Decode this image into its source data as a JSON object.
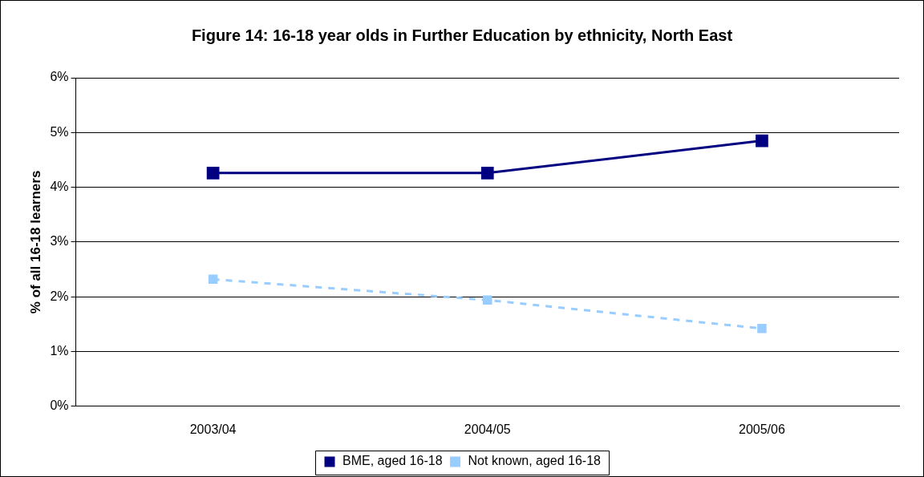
{
  "chart_data": {
    "type": "line",
    "title": "Figure 14: 16-18 year olds in Further Education by ethnicity, North East",
    "ylabel": "% of all 16-18 learners",
    "categories": [
      "2003/04",
      "2004/05",
      "2005/06"
    ],
    "series": [
      {
        "name": "BME, aged 16-18",
        "color": "#000080",
        "values": [
          4.26,
          4.26,
          4.85
        ],
        "line_style": "solid"
      },
      {
        "name": "Not known, aged 16-18",
        "color": "#99ccff",
        "values": [
          2.32,
          1.94,
          1.42
        ],
        "line_style": "dashed"
      }
    ],
    "ylim": [
      0,
      6
    ],
    "yticks": [
      {
        "value": 0,
        "label": "0%"
      },
      {
        "value": 1,
        "label": "1%"
      },
      {
        "value": 2,
        "label": "2%"
      },
      {
        "value": 3,
        "label": "3%"
      },
      {
        "value": 4,
        "label": "4%"
      },
      {
        "value": 5,
        "label": "5%"
      },
      {
        "value": 6,
        "label": "6%"
      }
    ],
    "grid": "y",
    "legend": "bottom",
    "marker": "square"
  }
}
